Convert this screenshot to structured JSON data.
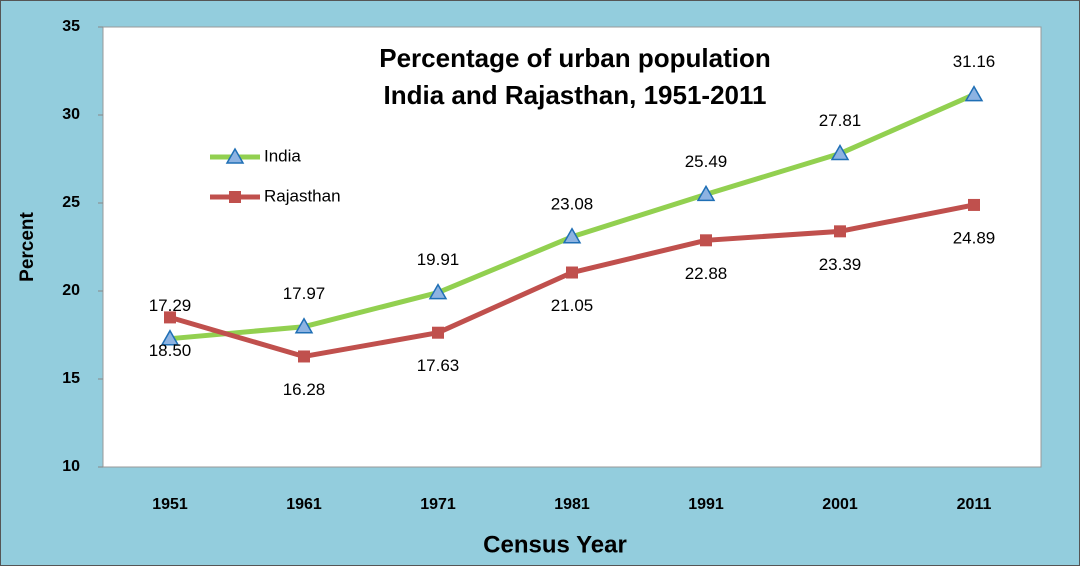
{
  "chart_data": {
    "type": "line",
    "title": [
      "Percentage of urban population",
      "India and Rajasthan, 1951-2011"
    ],
    "x_label": "Census Year",
    "y_label": "Percent",
    "categories": [
      "1951",
      "1961",
      "1971",
      "1981",
      "1991",
      "2001",
      "2011"
    ],
    "series": [
      {
        "name": "India",
        "color": "#92d050",
        "marker": "triangle",
        "marker_color": "#8db3e2",
        "values": [
          17.29,
          17.97,
          19.91,
          23.08,
          25.49,
          27.81,
          31.16
        ],
        "value_labels": [
          "17.29",
          "17.97",
          "19.91",
          "23.08",
          "25.49",
          "27.81",
          "31.16"
        ]
      },
      {
        "name": "Rajasthan",
        "color": "#c0504d",
        "marker": "square",
        "marker_color": "#c0504d",
        "values": [
          18.5,
          16.28,
          17.63,
          21.05,
          22.88,
          23.39,
          24.89
        ],
        "value_labels": [
          "18.50",
          "16.28",
          "17.63",
          "21.05",
          "22.88",
          "23.39",
          "24.89"
        ]
      }
    ],
    "ylim": [
      10,
      35
    ],
    "yticks": [
      10,
      15,
      20,
      25,
      30,
      35
    ],
    "grid": false,
    "legend": "upper left"
  }
}
